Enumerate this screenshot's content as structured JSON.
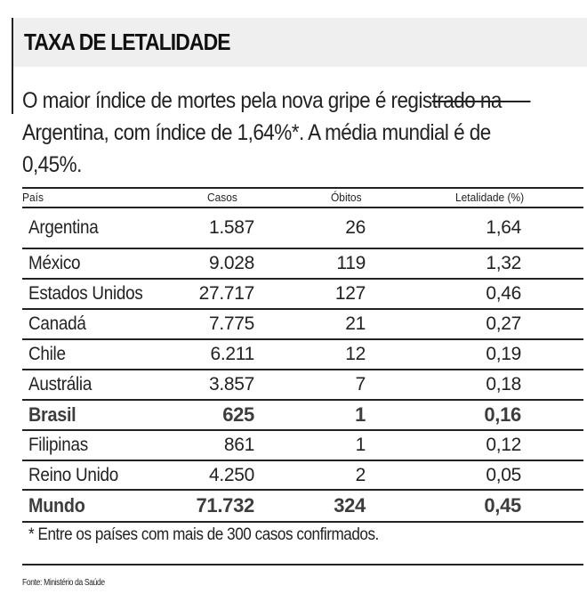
{
  "title": "TAXA DE LETALIDADE",
  "intro": {
    "line1_a": "O maior índice de mortes pela nova gripe é regis",
    "line1_strike": "trado na",
    "line2": "Argentina, com índice de 1,64%*. A média mundial é de",
    "line3": "0,45%."
  },
  "table": {
    "headers": {
      "country": "País",
      "cases": "Casos",
      "deaths": "Óbitos",
      "lethality": "Letalidade (%)"
    },
    "rows": [
      {
        "country": "Argentina",
        "cases": "1.587",
        "deaths": "26",
        "lethality": "1,64",
        "bold": false
      },
      {
        "country": "México",
        "cases": "9.028",
        "deaths": "119",
        "lethality": "1,32",
        "bold": false
      },
      {
        "country": "Estados Unidos",
        "cases": "27.717",
        "deaths": "127",
        "lethality": "0,46",
        "bold": false
      },
      {
        "country": "Canadá",
        "cases": "7.775",
        "deaths": "21",
        "lethality": "0,27",
        "bold": false
      },
      {
        "country": "Chile",
        "cases": "6.211",
        "deaths": "12",
        "lethality": "0,19",
        "bold": false
      },
      {
        "country": "Austrália",
        "cases": "3.857",
        "deaths": "7",
        "lethality": "0,18",
        "bold": false
      },
      {
        "country": "Brasil",
        "cases": "625",
        "deaths": "1",
        "lethality": "0,16",
        "bold": true
      },
      {
        "country": "Filipinas",
        "cases": "861",
        "deaths": "1",
        "lethality": "0,12",
        "bold": false
      },
      {
        "country": "Reino Unido",
        "cases": "4.250",
        "deaths": "2",
        "lethality": "0,05",
        "bold": false
      },
      {
        "country": "Mundo",
        "cases": "71.732",
        "deaths": "324",
        "lethality": "0,45",
        "bold": true
      }
    ]
  },
  "footnote": "* Entre os países com mais de 300 casos confirmados.",
  "source": "Fonte: Ministério da Saúde",
  "colors": {
    "title_band": "#efefef",
    "text": "#222222",
    "bold_row_text": "#3d3d3d",
    "rules": "#222222"
  },
  "chart_data": {
    "type": "table",
    "title": "TAXA DE LETALIDADE",
    "subtitle": "O maior índice de mortes pela nova gripe é registrado na Argentina, com índice de 1,64%*. A média mundial é de 0,45%.",
    "columns": [
      "País",
      "Casos",
      "Óbitos",
      "Letalidade (%)"
    ],
    "categories": [
      "Argentina",
      "México",
      "Estados Unidos",
      "Canadá",
      "Chile",
      "Austrália",
      "Brasil",
      "Filipinas",
      "Reino Unido",
      "Mundo"
    ],
    "series": [
      {
        "name": "Casos",
        "values": [
          1587,
          9028,
          27717,
          7775,
          6211,
          3857,
          625,
          861,
          4250,
          71732
        ]
      },
      {
        "name": "Óbitos",
        "values": [
          26,
          119,
          127,
          21,
          12,
          7,
          1,
          1,
          2,
          324
        ]
      },
      {
        "name": "Letalidade (%)",
        "values": [
          1.64,
          1.32,
          0.46,
          0.27,
          0.19,
          0.18,
          0.16,
          0.12,
          0.05,
          0.45
        ]
      }
    ],
    "highlighted_rows": [
      "Brasil",
      "Mundo"
    ],
    "annotations": [
      "* Entre os países com mais de 300 casos confirmados."
    ],
    "source": "Fonte: Ministério da Saúde"
  }
}
